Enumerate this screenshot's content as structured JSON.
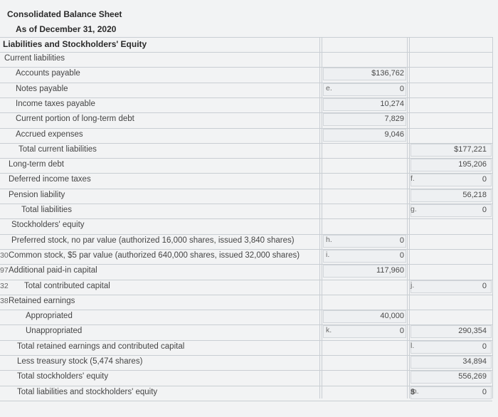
{
  "header": {
    "title": "Consolidated Balance Sheet",
    "date": "As of December 31, 2020",
    "section": "Liabilities and Stockholders' Equity"
  },
  "rows": [
    {
      "label": "Current liabilities",
      "indent": 6,
      "rownum": ""
    },
    {
      "label": "Accounts payable",
      "indent": 22,
      "rownum": ""
    },
    {
      "label": "Notes payable",
      "indent": 22,
      "rownum": ""
    },
    {
      "label": "Income taxes payable",
      "indent": 22,
      "rownum": ""
    },
    {
      "label": "Current portion of long-term debt",
      "indent": 22,
      "rownum": ""
    },
    {
      "label": "Accrued expenses",
      "indent": 22,
      "rownum": ""
    },
    {
      "label": "Total current liabilities",
      "indent": 26,
      "rownum": ""
    },
    {
      "label": "Long-term debt",
      "indent": 12,
      "rownum": ""
    },
    {
      "label": "Deferred income taxes",
      "indent": 12,
      "rownum": ""
    },
    {
      "label": "Pension liability",
      "indent": 12,
      "rownum": ""
    },
    {
      "label": "Total liabilities",
      "indent": 30,
      "rownum": ""
    },
    {
      "label": "Stockholders' equity",
      "indent": 16,
      "rownum": ""
    },
    {
      "label": "Preferred stock, no par value (authorized 16,000 shares, issued 3,840 shares)",
      "indent": 16,
      "rownum": ""
    },
    {
      "label": "Common stock, $5 par value (authorized 640,000 shares, issued 32,000 shares)",
      "indent": 12,
      "rownum": "30"
    },
    {
      "label": "Additional paid-in capital",
      "indent": 12,
      "rownum": "97"
    },
    {
      "label": "Total contributed capital",
      "indent": 34,
      "rownum": "32"
    },
    {
      "label": "Retained earnings",
      "indent": 12,
      "rownum": "38"
    },
    {
      "label": "Appropriated",
      "indent": 36,
      "rownum": ""
    },
    {
      "label": "Unappropriated",
      "indent": 36,
      "rownum": ""
    },
    {
      "label": "Total retained earnings and contributed capital",
      "indent": 24,
      "rownum": ""
    },
    {
      "label": "Less treasury stock (5,474 shares)",
      "indent": 24,
      "rownum": ""
    },
    {
      "label": "Total stockholders' equity",
      "indent": 24,
      "rownum": ""
    },
    {
      "label": "Total liabilities and stockholders' equity",
      "indent": 24,
      "rownum": ""
    }
  ],
  "col1": [
    {
      "row": 1,
      "value": "$136,762"
    },
    {
      "row": 2,
      "value": "0"
    },
    {
      "row": 3,
      "value": "10,274"
    },
    {
      "row": 4,
      "value": "7,829"
    },
    {
      "row": 5,
      "value": "9,046"
    },
    {
      "row": 12,
      "value": "0"
    },
    {
      "row": 13,
      "value": "0"
    },
    {
      "row": 14,
      "value": "117,960"
    },
    {
      "row": 17,
      "value": "40,000"
    },
    {
      "row": 18,
      "value": "0"
    }
  ],
  "col2": [
    {
      "row": 6,
      "value": "$177,221"
    },
    {
      "row": 7,
      "value": "195,206"
    },
    {
      "row": 8,
      "value": "0"
    },
    {
      "row": 9,
      "value": "56,218"
    },
    {
      "row": 10,
      "value": "0"
    },
    {
      "row": 15,
      "value": "0"
    },
    {
      "row": 18,
      "value": "290,354"
    },
    {
      "row": 19,
      "value": "0"
    },
    {
      "row": 20,
      "value": "34,894"
    },
    {
      "row": 21,
      "value": "556,269"
    },
    {
      "row": 22,
      "value": "0"
    }
  ],
  "letters": [
    {
      "row": 2,
      "col": "a",
      "text": "e."
    },
    {
      "row": 8,
      "col": "b",
      "text": "f."
    },
    {
      "row": 10,
      "col": "b",
      "text": "g."
    },
    {
      "row": 12,
      "col": "a",
      "text": "h."
    },
    {
      "row": 13,
      "col": "a",
      "text": "i."
    },
    {
      "row": 15,
      "col": "b",
      "text": "j."
    },
    {
      "row": 18,
      "col": "a",
      "text": "k."
    },
    {
      "row": 19,
      "col": "b",
      "text": "l."
    },
    {
      "row": 22,
      "col": "b",
      "text": "m."
    }
  ],
  "final_dollar": "$"
}
